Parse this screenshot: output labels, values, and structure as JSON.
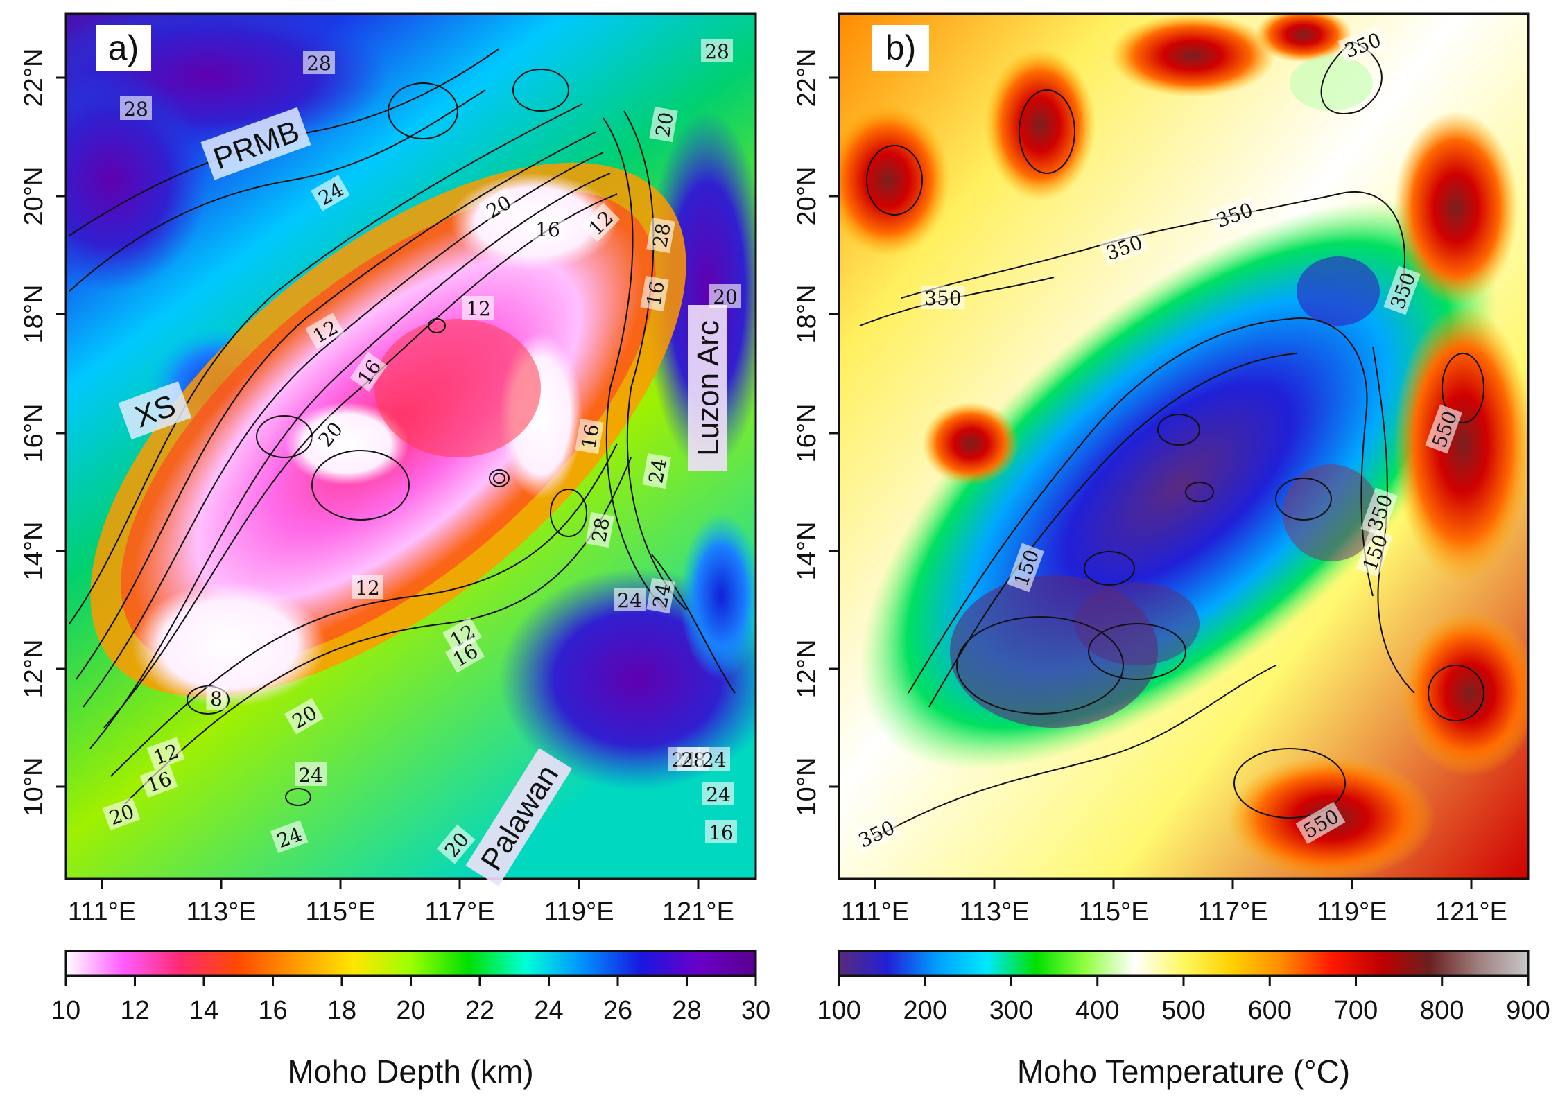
{
  "figure": {
    "panels": [
      {
        "id": "a",
        "panel_label": "a)",
        "x_ticks": [
          "111°E",
          "113°E",
          "115°E",
          "117°E",
          "119°E",
          "121°E"
        ],
        "y_ticks": [
          "10°N",
          "12°N",
          "14°N",
          "16°N",
          "18°N",
          "20°N",
          "22°N"
        ],
        "colorbar": {
          "title": "Moho Depth (km)",
          "ticks": [
            "10",
            "12",
            "14",
            "16",
            "18",
            "20",
            "22",
            "24",
            "26",
            "28",
            "30"
          ],
          "colors": [
            "#ffffff",
            "#ff5cff",
            "#ff2a6e",
            "#ff4a00",
            "#ff9a00",
            "#ffe600",
            "#9cff00",
            "#00e000",
            "#00ffd8",
            "#0090ff",
            "#1818e0",
            "#6a00c8",
            "#5a0090"
          ]
        },
        "region_labels": [
          "PRMB",
          "XS",
          "Luzon Arc",
          "Palawan"
        ],
        "contour_labels": [
          "28",
          "28",
          "28",
          "24",
          "20",
          "16",
          "12",
          "12",
          "12",
          "16",
          "20",
          "12",
          "12",
          "16",
          "20",
          "16",
          "12",
          "8",
          "20",
          "24",
          "24",
          "20",
          "24",
          "16",
          "24",
          "20",
          "16",
          "28",
          "24",
          "24",
          "28",
          "28",
          "16",
          "20",
          "24",
          "24"
        ]
      },
      {
        "id": "b",
        "panel_label": "b)",
        "x_ticks": [
          "111°E",
          "113°E",
          "115°E",
          "117°E",
          "119°E",
          "121°E"
        ],
        "y_ticks": [
          "10°N",
          "12°N",
          "14°N",
          "16°N",
          "18°N",
          "20°N",
          "22°N"
        ],
        "colorbar": {
          "title": "Moho Temperature (°C)",
          "ticks": [
            "100",
            "200",
            "300",
            "400",
            "500",
            "600",
            "700",
            "800",
            "900"
          ],
          "colors": [
            "#5a2a7a",
            "#2020d8",
            "#00a0ff",
            "#00e8ff",
            "#00e000",
            "#90ff40",
            "#ffffff",
            "#fff860",
            "#ffd000",
            "#ff8a00",
            "#ff1a00",
            "#c00000",
            "#6a2020",
            "#a08080",
            "#c8c8c8"
          ]
        },
        "contour_labels": [
          "350",
          "350",
          "350",
          "350",
          "350",
          "150",
          "150",
          "350",
          "550",
          "350",
          "550"
        ]
      }
    ]
  }
}
